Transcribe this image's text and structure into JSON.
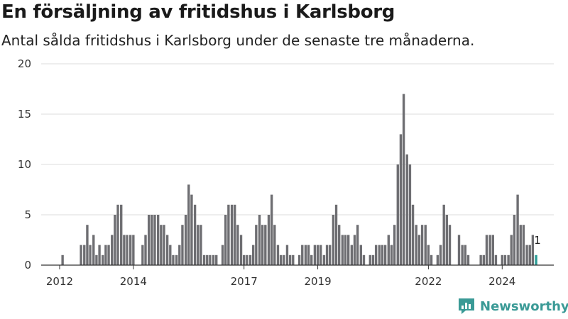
{
  "header": {
    "title": "En försäljning av fritidshus i Karlsborg",
    "subtitle": "Antal sålda fritidshus i Karlsborg under de senaste tre månaderna."
  },
  "brand": {
    "name": "Newsworthy",
    "icon": "newsworthy-logo-icon",
    "color": "#3a9a96"
  },
  "colors": {
    "bar": "#6e6e72",
    "highlight": "#2a9d96",
    "grid": "#dddddd",
    "axis": "#333333"
  },
  "chart_data": {
    "type": "bar",
    "grid": "horizontal",
    "ylim": [
      0,
      20
    ],
    "yticks": [
      0,
      5,
      10,
      15,
      20
    ],
    "x_start": 2011.5,
    "x_end": 2025.4,
    "xticks": [
      {
        "label": "2012",
        "x": 2012.0
      },
      {
        "label": "2014",
        "x": 2014.0
      },
      {
        "label": "2017",
        "x": 2017.0
      },
      {
        "label": "2019",
        "x": 2019.0
      },
      {
        "label": "2022",
        "x": 2022.0
      },
      {
        "label": "2024",
        "x": 2024.0
      }
    ],
    "series": [
      {
        "values": [
          {
            "x": 2012.08,
            "y": 1
          },
          {
            "x": 2012.58,
            "y": 2
          },
          {
            "x": 2012.67,
            "y": 2
          },
          {
            "x": 2012.75,
            "y": 4
          },
          {
            "x": 2012.83,
            "y": 2
          },
          {
            "x": 2012.92,
            "y": 3
          },
          {
            "x": 2013.0,
            "y": 1
          },
          {
            "x": 2013.08,
            "y": 2
          },
          {
            "x": 2013.17,
            "y": 1
          },
          {
            "x": 2013.25,
            "y": 2
          },
          {
            "x": 2013.33,
            "y": 2
          },
          {
            "x": 2013.42,
            "y": 3
          },
          {
            "x": 2013.5,
            "y": 5
          },
          {
            "x": 2013.58,
            "y": 6
          },
          {
            "x": 2013.67,
            "y": 6
          },
          {
            "x": 2013.75,
            "y": 3
          },
          {
            "x": 2013.83,
            "y": 3
          },
          {
            "x": 2013.92,
            "y": 3
          },
          {
            "x": 2014.0,
            "y": 3
          },
          {
            "x": 2014.25,
            "y": 2
          },
          {
            "x": 2014.33,
            "y": 3
          },
          {
            "x": 2014.42,
            "y": 5
          },
          {
            "x": 2014.5,
            "y": 5
          },
          {
            "x": 2014.58,
            "y": 5
          },
          {
            "x": 2014.67,
            "y": 5
          },
          {
            "x": 2014.75,
            "y": 4
          },
          {
            "x": 2014.83,
            "y": 4
          },
          {
            "x": 2014.92,
            "y": 3
          },
          {
            "x": 2015.0,
            "y": 2
          },
          {
            "x": 2015.08,
            "y": 1
          },
          {
            "x": 2015.17,
            "y": 1
          },
          {
            "x": 2015.25,
            "y": 2
          },
          {
            "x": 2015.33,
            "y": 4
          },
          {
            "x": 2015.42,
            "y": 5
          },
          {
            "x": 2015.5,
            "y": 8
          },
          {
            "x": 2015.58,
            "y": 7
          },
          {
            "x": 2015.67,
            "y": 6
          },
          {
            "x": 2015.75,
            "y": 4
          },
          {
            "x": 2015.83,
            "y": 4
          },
          {
            "x": 2015.92,
            "y": 1
          },
          {
            "x": 2016.0,
            "y": 1
          },
          {
            "x": 2016.08,
            "y": 1
          },
          {
            "x": 2016.17,
            "y": 1
          },
          {
            "x": 2016.25,
            "y": 1
          },
          {
            "x": 2016.42,
            "y": 2
          },
          {
            "x": 2016.5,
            "y": 5
          },
          {
            "x": 2016.58,
            "y": 6
          },
          {
            "x": 2016.67,
            "y": 6
          },
          {
            "x": 2016.75,
            "y": 6
          },
          {
            "x": 2016.83,
            "y": 4
          },
          {
            "x": 2016.92,
            "y": 3
          },
          {
            "x": 2017.0,
            "y": 1
          },
          {
            "x": 2017.08,
            "y": 1
          },
          {
            "x": 2017.17,
            "y": 1
          },
          {
            "x": 2017.25,
            "y": 2
          },
          {
            "x": 2017.33,
            "y": 4
          },
          {
            "x": 2017.42,
            "y": 5
          },
          {
            "x": 2017.5,
            "y": 4
          },
          {
            "x": 2017.58,
            "y": 4
          },
          {
            "x": 2017.67,
            "y": 5
          },
          {
            "x": 2017.75,
            "y": 7
          },
          {
            "x": 2017.83,
            "y": 4
          },
          {
            "x": 2017.92,
            "y": 2
          },
          {
            "x": 2018.0,
            "y": 1
          },
          {
            "x": 2018.08,
            "y": 1
          },
          {
            "x": 2018.17,
            "y": 2
          },
          {
            "x": 2018.25,
            "y": 1
          },
          {
            "x": 2018.33,
            "y": 1
          },
          {
            "x": 2018.5,
            "y": 1
          },
          {
            "x": 2018.58,
            "y": 2
          },
          {
            "x": 2018.67,
            "y": 2
          },
          {
            "x": 2018.75,
            "y": 2
          },
          {
            "x": 2018.83,
            "y": 1
          },
          {
            "x": 2018.92,
            "y": 2
          },
          {
            "x": 2019.0,
            "y": 2
          },
          {
            "x": 2019.08,
            "y": 2
          },
          {
            "x": 2019.17,
            "y": 1
          },
          {
            "x": 2019.25,
            "y": 2
          },
          {
            "x": 2019.33,
            "y": 2
          },
          {
            "x": 2019.42,
            "y": 5
          },
          {
            "x": 2019.5,
            "y": 6
          },
          {
            "x": 2019.58,
            "y": 4
          },
          {
            "x": 2019.67,
            "y": 3
          },
          {
            "x": 2019.75,
            "y": 3
          },
          {
            "x": 2019.83,
            "y": 3
          },
          {
            "x": 2019.92,
            "y": 2
          },
          {
            "x": 2020.0,
            "y": 3
          },
          {
            "x": 2020.08,
            "y": 4
          },
          {
            "x": 2020.17,
            "y": 2
          },
          {
            "x": 2020.25,
            "y": 1
          },
          {
            "x": 2020.42,
            "y": 1
          },
          {
            "x": 2020.5,
            "y": 1
          },
          {
            "x": 2020.58,
            "y": 2
          },
          {
            "x": 2020.67,
            "y": 2
          },
          {
            "x": 2020.75,
            "y": 2
          },
          {
            "x": 2020.83,
            "y": 2
          },
          {
            "x": 2020.92,
            "y": 3
          },
          {
            "x": 2021.0,
            "y": 2
          },
          {
            "x": 2021.08,
            "y": 4
          },
          {
            "x": 2021.17,
            "y": 10
          },
          {
            "x": 2021.25,
            "y": 13
          },
          {
            "x": 2021.33,
            "y": 17
          },
          {
            "x": 2021.42,
            "y": 11
          },
          {
            "x": 2021.5,
            "y": 10
          },
          {
            "x": 2021.58,
            "y": 6
          },
          {
            "x": 2021.67,
            "y": 4
          },
          {
            "x": 2021.75,
            "y": 3
          },
          {
            "x": 2021.83,
            "y": 4
          },
          {
            "x": 2021.92,
            "y": 4
          },
          {
            "x": 2022.0,
            "y": 2
          },
          {
            "x": 2022.08,
            "y": 1
          },
          {
            "x": 2022.25,
            "y": 1
          },
          {
            "x": 2022.33,
            "y": 2
          },
          {
            "x": 2022.42,
            "y": 6
          },
          {
            "x": 2022.5,
            "y": 5
          },
          {
            "x": 2022.58,
            "y": 4
          },
          {
            "x": 2022.83,
            "y": 3
          },
          {
            "x": 2022.92,
            "y": 2
          },
          {
            "x": 2023.0,
            "y": 2
          },
          {
            "x": 2023.08,
            "y": 1
          },
          {
            "x": 2023.42,
            "y": 1
          },
          {
            "x": 2023.5,
            "y": 1
          },
          {
            "x": 2023.58,
            "y": 3
          },
          {
            "x": 2023.67,
            "y": 3
          },
          {
            "x": 2023.75,
            "y": 3
          },
          {
            "x": 2023.83,
            "y": 1
          },
          {
            "x": 2024.0,
            "y": 1
          },
          {
            "x": 2024.08,
            "y": 1
          },
          {
            "x": 2024.17,
            "y": 1
          },
          {
            "x": 2024.25,
            "y": 3
          },
          {
            "x": 2024.33,
            "y": 5
          },
          {
            "x": 2024.42,
            "y": 7
          },
          {
            "x": 2024.5,
            "y": 4
          },
          {
            "x": 2024.58,
            "y": 4
          },
          {
            "x": 2024.67,
            "y": 2
          },
          {
            "x": 2024.75,
            "y": 2
          },
          {
            "x": 2024.83,
            "y": 3
          },
          {
            "x": 2024.92,
            "y": 1,
            "highlight": true,
            "label": "1"
          }
        ]
      }
    ]
  }
}
